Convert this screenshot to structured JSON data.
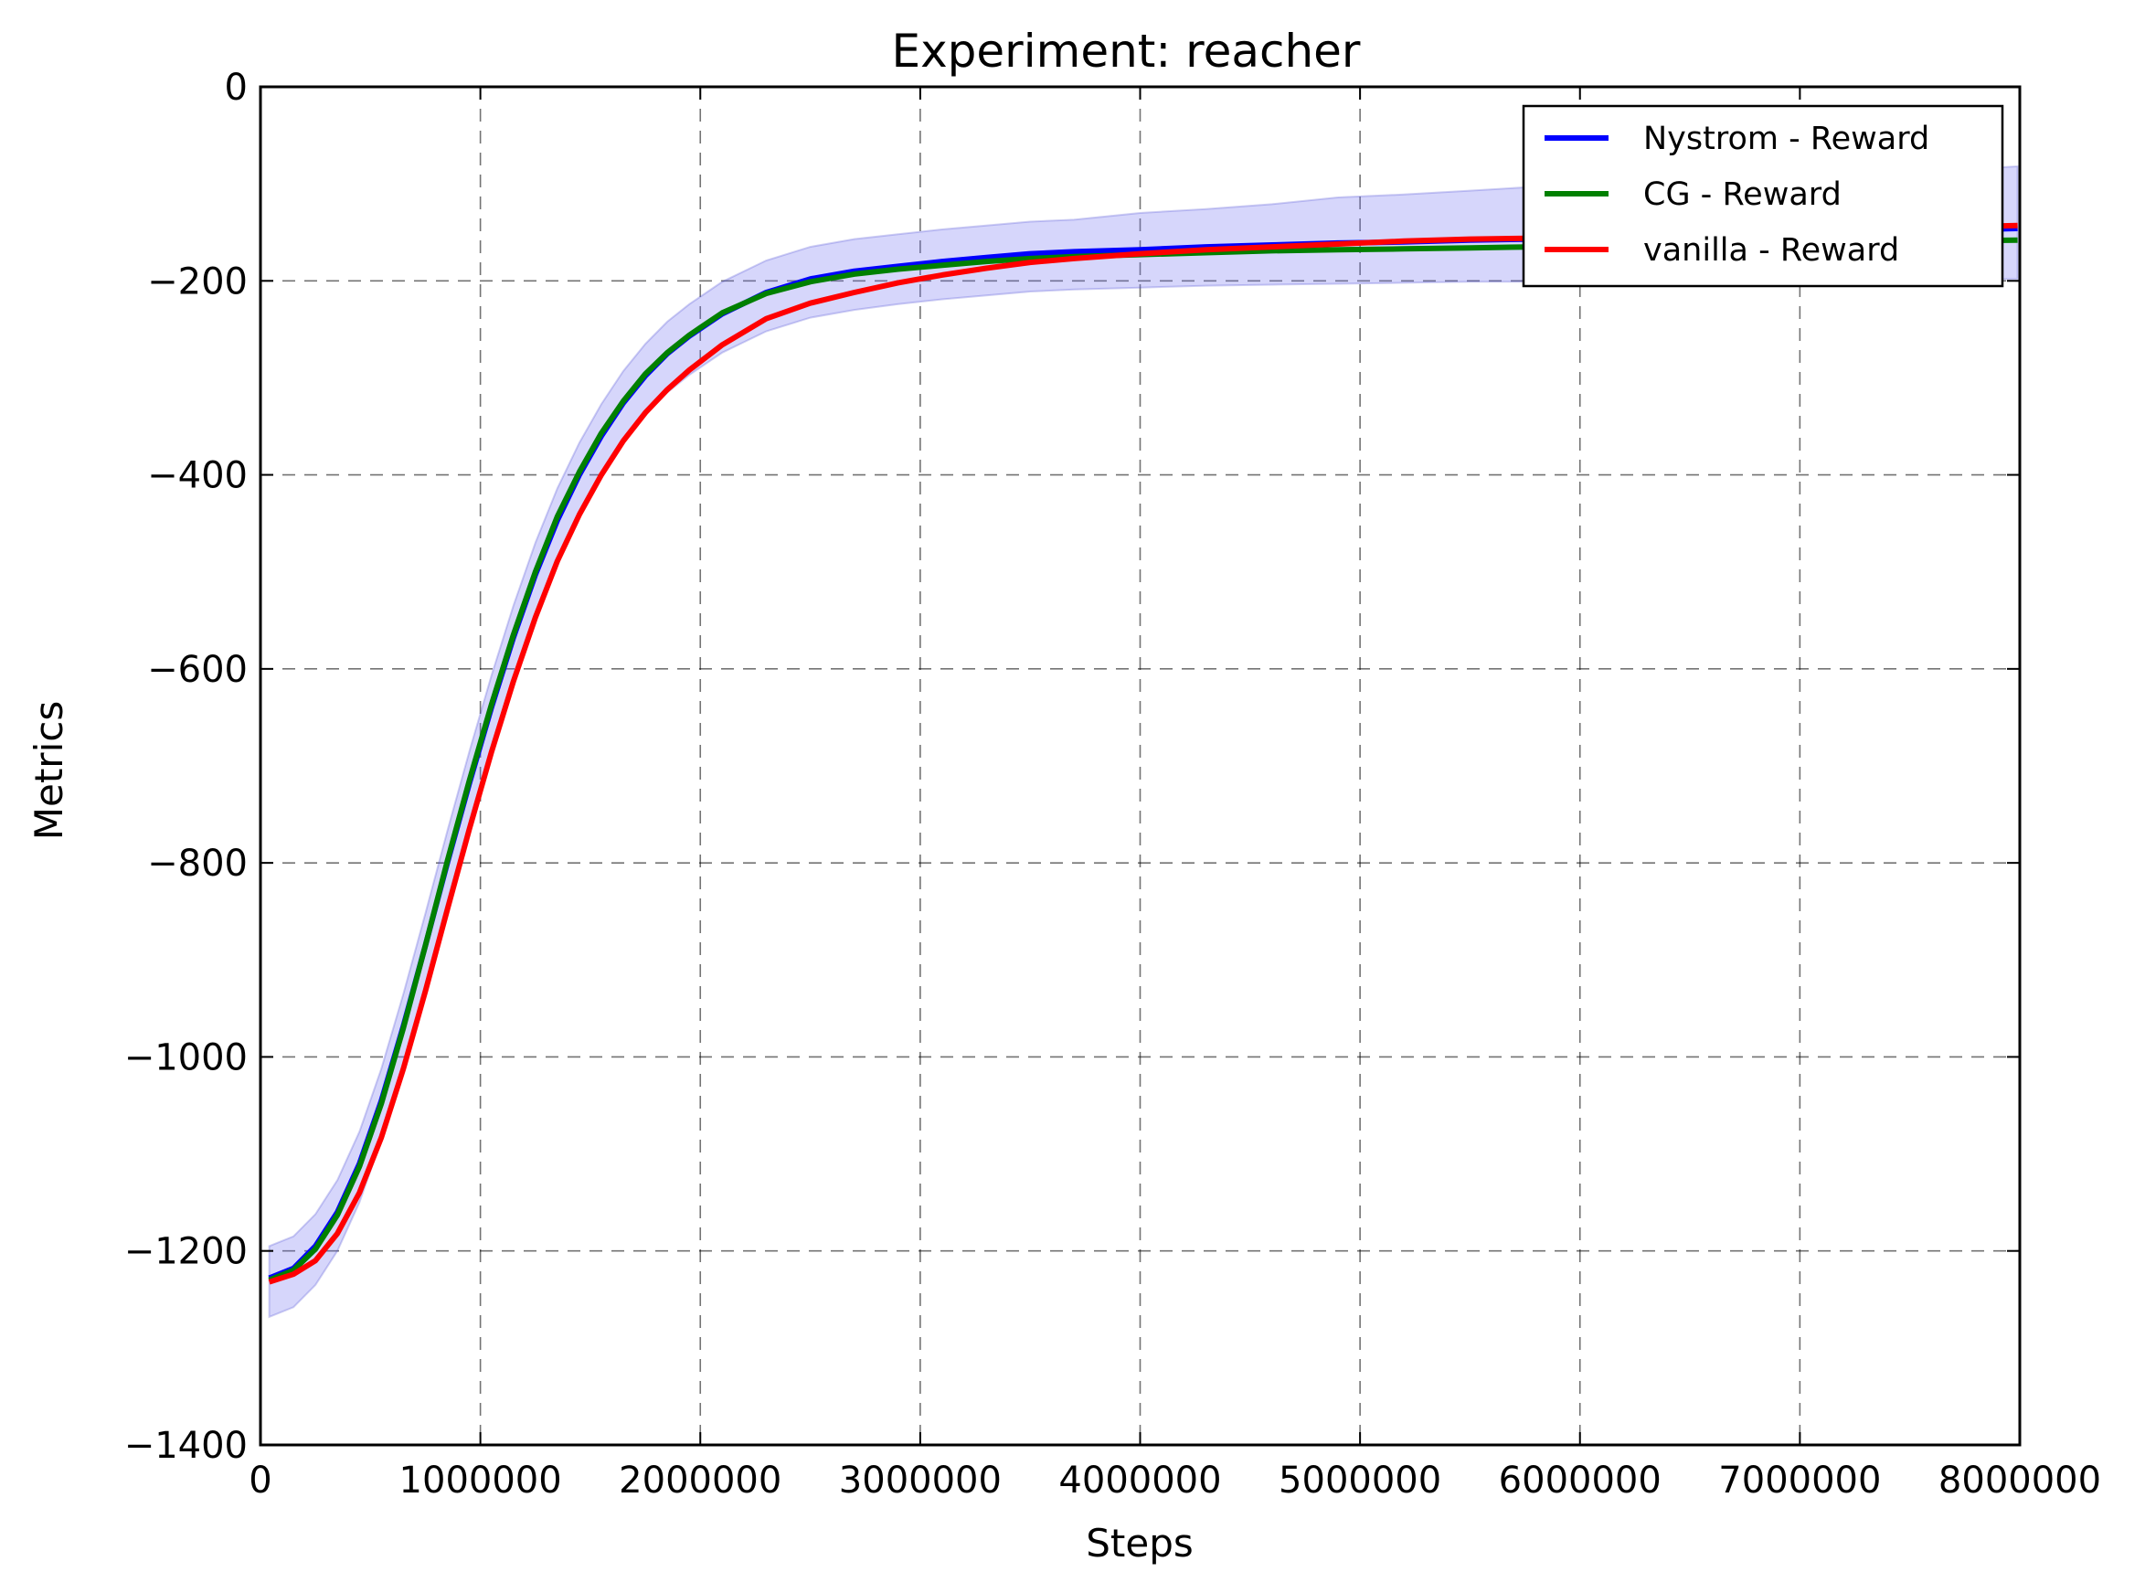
{
  "chart_data": {
    "type": "line",
    "title": "Experiment: reacher",
    "xlabel": "Steps",
    "ylabel": "Metrics",
    "xlim": [
      0,
      8000000
    ],
    "ylim": [
      -1400,
      0
    ],
    "xticks": [
      0,
      1000000,
      2000000,
      3000000,
      4000000,
      5000000,
      6000000,
      7000000,
      8000000
    ],
    "xtick_labels": [
      "0",
      "1000000",
      "2000000",
      "3000000",
      "4000000",
      "5000000",
      "6000000",
      "7000000",
      "8000000"
    ],
    "yticks": [
      -1400,
      -1200,
      -1000,
      -800,
      -600,
      -400,
      -200,
      0
    ],
    "ytick_labels": [
      "−1400",
      "−1200",
      "−1000",
      "−800",
      "−600",
      "−400",
      "−200",
      "0"
    ],
    "grid": true,
    "legend_position": "top-right",
    "x": [
      40000,
      150000,
      250000,
      350000,
      450000,
      550000,
      650000,
      750000,
      850000,
      950000,
      1050000,
      1150000,
      1250000,
      1350000,
      1450000,
      1550000,
      1650000,
      1750000,
      1850000,
      1950000,
      2100000,
      2300000,
      2500000,
      2700000,
      2900000,
      3100000,
      3300000,
      3500000,
      3700000,
      4000000,
      4300000,
      4600000,
      4900000,
      5200000,
      5500000,
      5800000,
      6100000,
      6400000,
      6700000,
      7000000,
      7300000,
      7600000,
      7990000
    ],
    "series": [
      {
        "name": "Nystrom - Reward",
        "color": "#0000ff",
        "values": [
          -1228,
          -1218,
          -1195,
          -1160,
          -1110,
          -1045,
          -968,
          -885,
          -800,
          -718,
          -640,
          -568,
          -503,
          -447,
          -400,
          -360,
          -326,
          -298,
          -275,
          -257,
          -234,
          -212,
          -198,
          -190,
          -185,
          -180,
          -176,
          -172,
          -170,
          -168,
          -165,
          -163,
          -161,
          -160,
          -158,
          -157,
          -156,
          -155,
          -154,
          -152,
          -150,
          -148,
          -146
        ],
        "band_upper": [
          -1195,
          -1185,
          -1162,
          -1127,
          -1077,
          -1012,
          -935,
          -852,
          -767,
          -685,
          -607,
          -535,
          -470,
          -414,
          -367,
          -327,
          -293,
          -265,
          -242,
          -224,
          -201,
          -179,
          -165,
          -157,
          -152,
          -147,
          -143,
          -139,
          -137,
          -130,
          -126,
          -121,
          -114,
          -111,
          -107,
          -103,
          -100,
          -99,
          -98,
          -96,
          -91,
          -87,
          -82
        ],
        "band_lower": [
          -1268,
          -1258,
          -1235,
          -1200,
          -1150,
          -1085,
          -1008,
          -925,
          -840,
          -758,
          -680,
          -608,
          -543,
          -487,
          -440,
          -400,
          -366,
          -338,
          -315,
          -297,
          -274,
          -252,
          -238,
          -230,
          -224,
          -219,
          -215,
          -211,
          -209,
          -207,
          -205,
          -204,
          -203,
          -202,
          -201,
          -201,
          -201,
          -200,
          -200,
          -200,
          -199,
          -199,
          -198
        ]
      },
      {
        "name": "CG - Reward",
        "color": "#008000",
        "values": [
          -1230,
          -1220,
          -1198,
          -1163,
          -1113,
          -1048,
          -970,
          -885,
          -798,
          -715,
          -637,
          -565,
          -500,
          -443,
          -397,
          -357,
          -324,
          -296,
          -274,
          -256,
          -233,
          -213,
          -201,
          -193,
          -188,
          -184,
          -180,
          -177,
          -175,
          -173,
          -171,
          -169,
          -168,
          -167,
          -166,
          -165,
          -164,
          -163,
          -162,
          -161,
          -160,
          -159,
          -158
        ]
      },
      {
        "name": "vanilla - Reward",
        "color": "#ff0000",
        "values": [
          -1232,
          -1224,
          -1210,
          -1182,
          -1140,
          -1083,
          -1012,
          -932,
          -848,
          -765,
          -686,
          -613,
          -547,
          -489,
          -441,
          -400,
          -365,
          -336,
          -312,
          -292,
          -266,
          -239,
          -223,
          -212,
          -202,
          -194,
          -187,
          -181,
          -177,
          -172,
          -168,
          -165,
          -162,
          -159,
          -157,
          -156,
          -155,
          -153,
          -151,
          -149,
          -147,
          -145,
          -143
        ]
      }
    ]
  }
}
